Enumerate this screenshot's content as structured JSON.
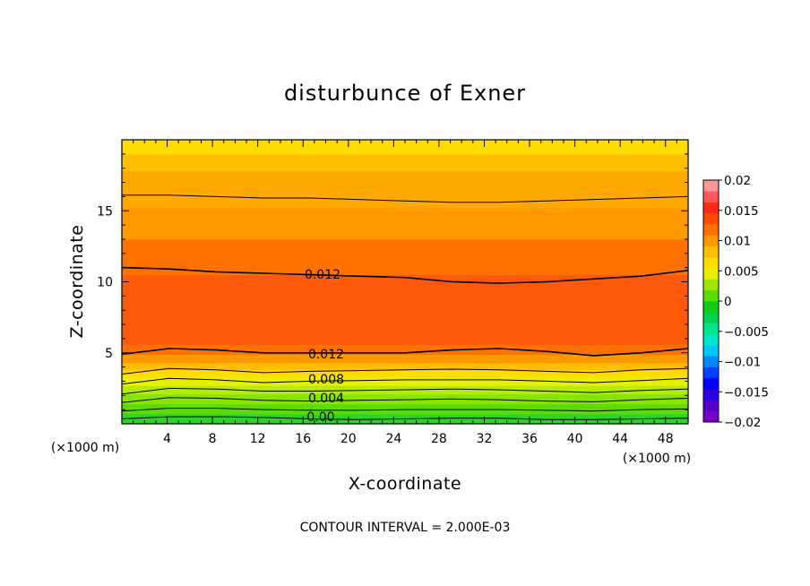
{
  "chart_data": {
    "type": "heatmap",
    "title": "disturbunce of Exner",
    "xlabel": "X-coordinate",
    "ylabel": "Z-coordinate",
    "x_unit": "(×1000 m)",
    "y_unit": "(×1000 m)",
    "xlim": [
      0,
      50
    ],
    "ylim": [
      0,
      20
    ],
    "x_ticks": [
      4,
      8,
      12,
      16,
      20,
      24,
      28,
      32,
      36,
      40,
      44,
      48
    ],
    "y_ticks": [
      5,
      10,
      15
    ],
    "footer": "CONTOUR INTERVAL = 2.000E-03",
    "colorbar": {
      "ticks": [
        "0.02",
        "0.015",
        "0.01",
        "0.005",
        "0",
        "−0.005",
        "−0.01",
        "−0.015",
        "−0.02"
      ],
      "range": [
        -0.02,
        0.02
      ],
      "colors": [
        "#7a00c8",
        "#5400c8",
        "#2a00e0",
        "#0000ff",
        "#0040ff",
        "#0088ff",
        "#00c8ff",
        "#00e6c8",
        "#00e68c",
        "#00d250",
        "#14cc14",
        "#5adc00",
        "#a0e600",
        "#e6f000",
        "#ffdc00",
        "#ffbe00",
        "#ff9900",
        "#ff7200",
        "#ff4a00",
        "#ff2a14",
        "#ff5a5a",
        "#ff9696"
      ]
    },
    "contour_labels": [
      "0.012",
      "0.012",
      "0.008",
      "0.004",
      "0.00"
    ],
    "bands": [
      {
        "z": 0.0,
        "value": 0.0,
        "color": "#2ed228"
      },
      {
        "z": 0.7,
        "value": 0.001,
        "color": "#5adc00"
      },
      {
        "z": 1.4,
        "value": 0.003,
        "color": "#86e400"
      },
      {
        "z": 2.1,
        "value": 0.005,
        "color": "#b4eb00"
      },
      {
        "z": 2.7,
        "value": 0.007,
        "color": "#e6f000"
      },
      {
        "z": 3.3,
        "value": 0.008,
        "color": "#ffdc00"
      },
      {
        "z": 3.8,
        "value": 0.009,
        "color": "#ffbe00"
      },
      {
        "z": 4.3,
        "value": 0.011,
        "color": "#ff9900"
      },
      {
        "z": 4.9,
        "value": 0.012,
        "color": "#ff7200"
      },
      {
        "z": 5.6,
        "value": 0.013,
        "color": "#ff5a0a"
      },
      {
        "z": 8.6,
        "value": 0.0125,
        "color": "#ff5a0a"
      },
      {
        "z": 10.5,
        "value": 0.0118,
        "color": "#ff7200"
      },
      {
        "z": 13.0,
        "value": 0.011,
        "color": "#ff9900"
      },
      {
        "z": 15.2,
        "value": 0.0095,
        "color": "#ffa800"
      },
      {
        "z": 17.8,
        "value": 0.008,
        "color": "#ffbe00"
      },
      {
        "z": 19.0,
        "value": 0.007,
        "color": "#ffdc00"
      }
    ],
    "contours": [
      {
        "value": 0.0,
        "z": [
          0.35,
          0.5,
          0.5,
          0.45,
          0.35,
          0.3,
          0.35,
          0.4,
          0.4,
          0.3,
          0.3,
          0.35,
          0.4
        ]
      },
      {
        "value": 0.002,
        "z": [
          0.9,
          1.1,
          1.1,
          1.0,
          0.95,
          0.95,
          1.0,
          1.0,
          1.0,
          0.95,
          0.9,
          1.0,
          1.05
        ]
      },
      {
        "value": 0.004,
        "z": [
          1.5,
          1.85,
          1.8,
          1.65,
          1.6,
          1.65,
          1.7,
          1.75,
          1.7,
          1.6,
          1.55,
          1.7,
          1.8
        ]
      },
      {
        "value": 0.006,
        "z": [
          2.1,
          2.5,
          2.45,
          2.3,
          2.3,
          2.35,
          2.4,
          2.45,
          2.4,
          2.3,
          2.2,
          2.35,
          2.45
        ]
      },
      {
        "value": 0.008,
        "z": [
          2.8,
          3.2,
          3.1,
          2.9,
          3.0,
          3.05,
          3.1,
          3.1,
          3.1,
          3.0,
          2.9,
          3.05,
          3.2
        ]
      },
      {
        "value": 0.01,
        "z": [
          3.5,
          3.9,
          3.8,
          3.6,
          3.7,
          3.75,
          3.8,
          3.85,
          3.8,
          3.7,
          3.6,
          3.8,
          3.9
        ]
      },
      {
        "value": 0.012,
        "z": [
          4.9,
          5.3,
          5.2,
          5.0,
          5.0,
          5.0,
          5.0,
          5.2,
          5.3,
          5.1,
          4.8,
          5.0,
          5.3
        ]
      },
      {
        "value": 0.012,
        "z": [
          11.0,
          10.9,
          10.7,
          10.6,
          10.5,
          10.4,
          10.3,
          10.0,
          9.9,
          10.0,
          10.2,
          10.4,
          10.8
        ]
      },
      {
        "value": 0.01,
        "z": [
          16.1,
          16.1,
          16.0,
          15.9,
          15.9,
          15.8,
          15.7,
          15.6,
          15.6,
          15.7,
          15.8,
          15.9,
          16.0
        ]
      }
    ]
  }
}
